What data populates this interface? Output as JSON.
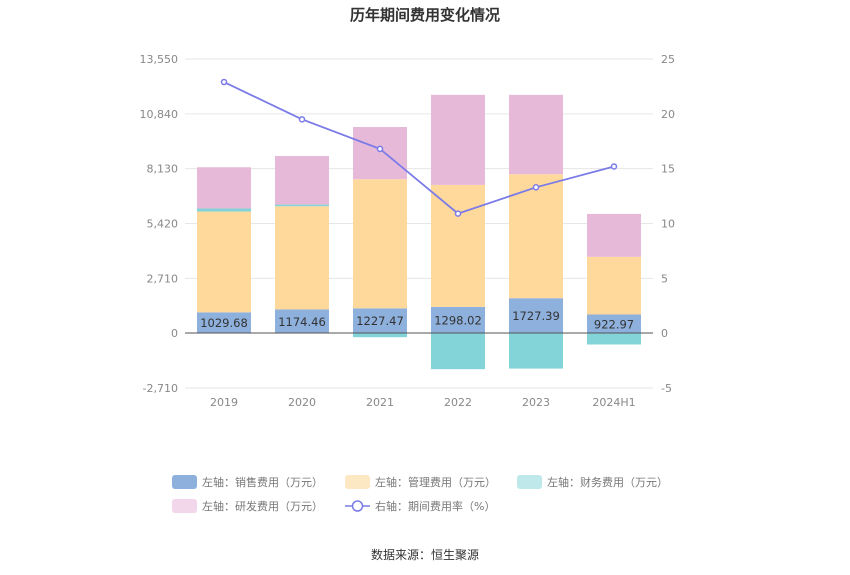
{
  "chart_data": {
    "type": "bar",
    "title": "历年期间费用变化情况",
    "categories": [
      "2019",
      "2020",
      "2021",
      "2022",
      "2023",
      "2024H1"
    ],
    "left_axis": {
      "ticks": [
        "13,550",
        "10,840",
        "8,130",
        "5,420",
        "2,710",
        "0",
        "-2,710"
      ],
      "range": [
        -2710,
        13550
      ]
    },
    "right_axis": {
      "ticks": [
        "25",
        "20",
        "15",
        "10",
        "5",
        "0",
        "-5"
      ],
      "range": [
        -5,
        25
      ]
    },
    "series": [
      {
        "name": "左轴：销售费用（万元）",
        "axis": "left",
        "stack": "a",
        "color": "#8eb0dc",
        "values": [
          1029.68,
          1174.46,
          1227.47,
          1298.02,
          1727.39,
          922.97
        ],
        "labels": [
          "1029.68",
          "1174.46",
          "1227.47",
          "1298.02",
          "1727.39",
          "922.97"
        ]
      },
      {
        "name": "左轴：管理费用（万元）",
        "axis": "left",
        "stack": "a",
        "color": "#ffd99b",
        "values": [
          4980,
          5100,
          6380,
          6030,
          6130,
          2850
        ]
      },
      {
        "name": "左轴：财务费用（万元）",
        "axis": "left",
        "stack": "a",
        "color": "#82d4d8",
        "values": [
          150,
          80,
          -200,
          -1780,
          -1750,
          -560
        ]
      },
      {
        "name": "左轴：研发费用（万元）",
        "axis": "left",
        "stack": "a",
        "color": "#e6b9d8",
        "values": [
          2040,
          2400,
          2580,
          4450,
          3920,
          2120
        ]
      },
      {
        "name": "右轴：期间费用率（%）",
        "axis": "right",
        "type": "line",
        "color": "#7b7be8",
        "values": [
          22.9,
          19.5,
          16.8,
          10.9,
          13.3,
          15.2
        ]
      }
    ],
    "legend_position": "bottom",
    "grid": true
  },
  "source": "数据来源：恒生聚源"
}
